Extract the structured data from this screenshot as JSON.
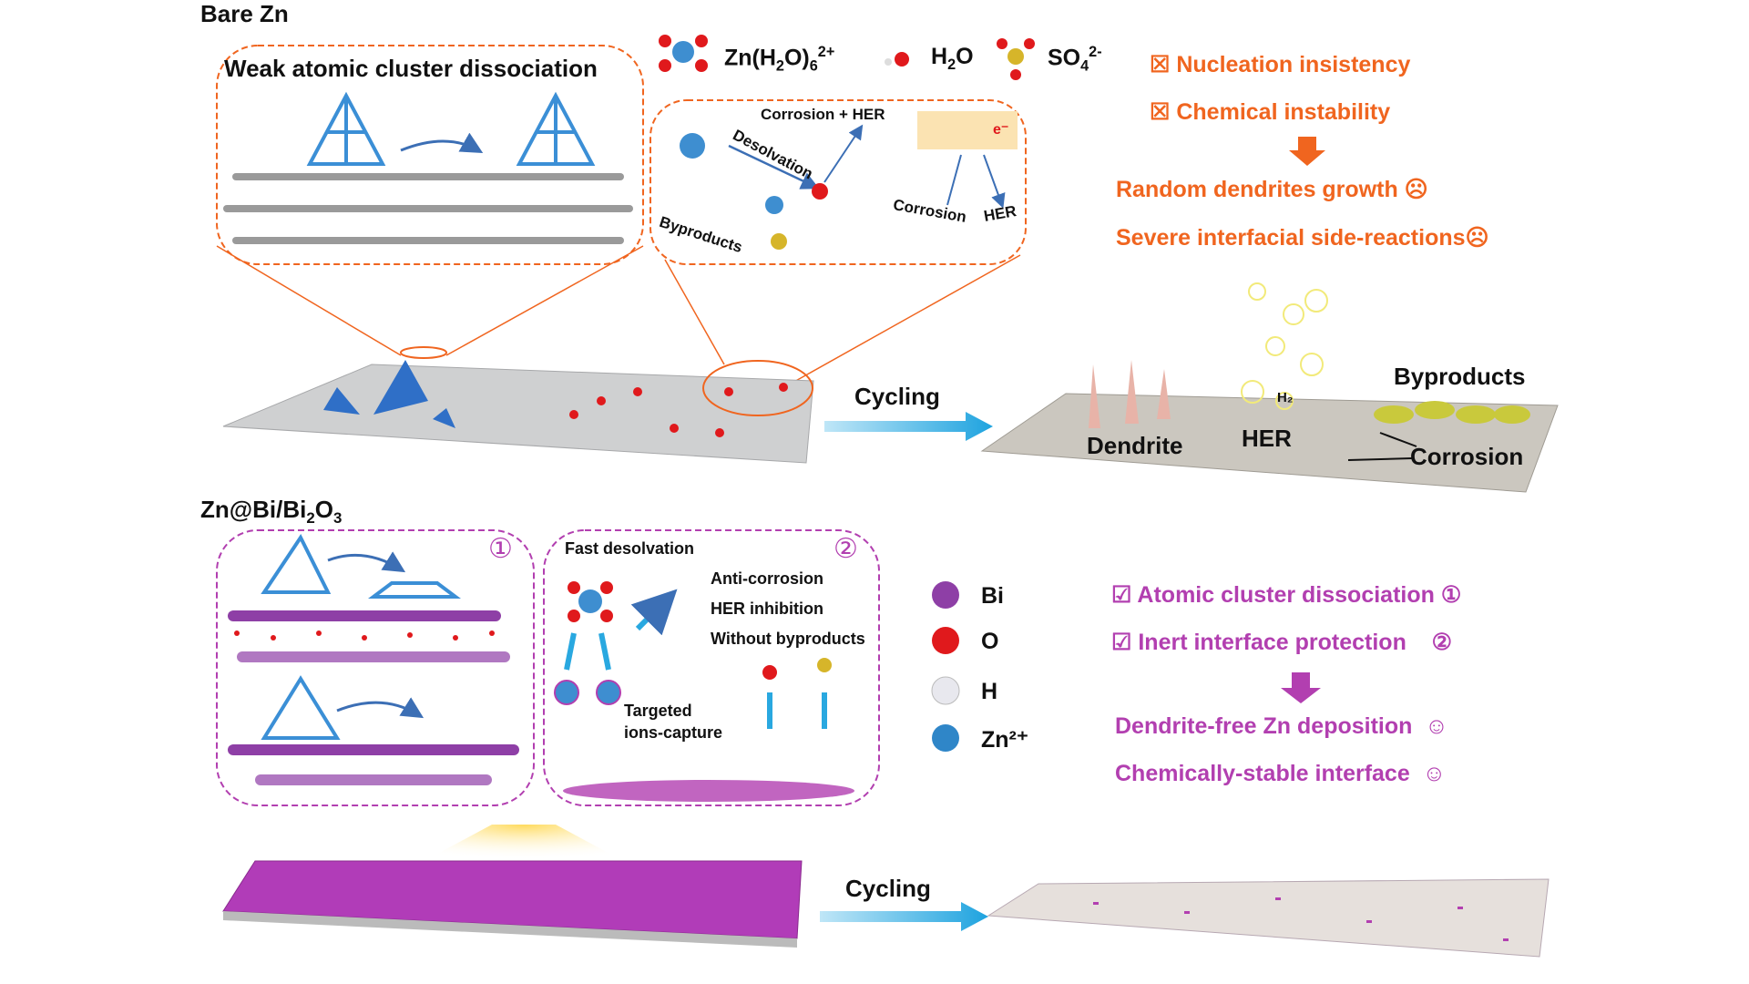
{
  "top": {
    "section_title": "Bare Zn",
    "box1_title": "Weak atomic cluster dissociation",
    "legend": {
      "zn_hydrate": "Zn(H",
      "zn_hydrate_sub1": "2",
      "zn_hydrate_mid": "O)",
      "zn_hydrate_sub2": "6",
      "zn_hydrate_sup": "2+",
      "water": "H",
      "water_sub": "2",
      "water_end": "O",
      "sulfate": "SO",
      "sulfate_sub": "4",
      "sulfate_sup": "2-"
    },
    "box2": {
      "corrosion_her": "Corrosion + HER",
      "desolvation": "Desolvation",
      "byproducts": "Byproducts",
      "corrosion": "Corrosion",
      "her": "HER",
      "electron": "e⁻"
    },
    "issues": [
      "☒ Nucleation insistency",
      "☒ Chemical instability"
    ],
    "results": [
      "Random dendrites growth ☹",
      "Severe interfacial side-reactions☹"
    ],
    "cycling": "Cycling",
    "after": {
      "dendrite": "Dendrite",
      "her": "HER",
      "h2": "H₂",
      "byproducts": "Byproducts",
      "corrosion": "Corrosion"
    }
  },
  "bottom": {
    "section_title": "Zn@Bi/Bi",
    "section_sub1": "2",
    "section_mid": "O",
    "section_sub2": "3",
    "box1_marker": "①",
    "box2_marker": "②",
    "box2": {
      "fast_desolvation": "Fast desolvation",
      "anti_corrosion": "Anti-corrosion",
      "her_inhibition": "HER inhibition",
      "without_byproducts": "Without byproducts",
      "targeted": "Targeted",
      "ions_capture": "ions-capture"
    },
    "legend": [
      {
        "label": "Bi",
        "color": "#8e3fa6"
      },
      {
        "label": "O",
        "color": "#e0191c"
      },
      {
        "label": "H",
        "color": "#e8e8ee"
      },
      {
        "label": "Zn²⁺",
        "color": "#2f86c8"
      }
    ],
    "benefits": [
      "☑ Atomic cluster dissociation ①",
      "☑ Inert interface protection    ②"
    ],
    "results": [
      "Dendrite-free Zn deposition  ☺",
      "Chemically-stable interface  ☺"
    ],
    "cycling": "Cycling"
  },
  "colors": {
    "orange": "#f0651f",
    "purple": "#b23fb0",
    "arrow_blue": "#29a8e0"
  }
}
